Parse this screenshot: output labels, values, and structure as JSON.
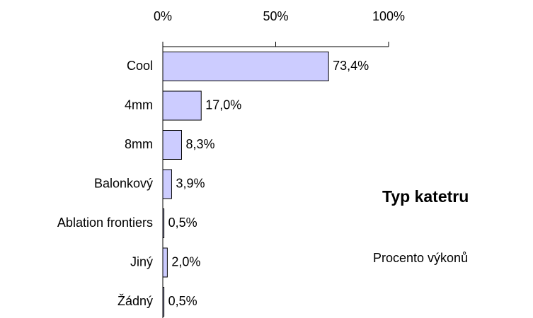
{
  "chart_data": {
    "type": "hbar",
    "title": "Typ katetru",
    "subtitle": "Procento výkonů",
    "categories": [
      "Cool",
      "4mm",
      "8mm",
      "Balonkový",
      "Ablation frontiers",
      "Jiný",
      "Žádný"
    ],
    "values": [
      73.4,
      17.0,
      8.3,
      3.9,
      0.5,
      2.0,
      0.5
    ],
    "value_labels": [
      "73,4%",
      "17,0%",
      "8,3%",
      "3,9%",
      "0,5%",
      "2,0%",
      "0,5%"
    ],
    "color": "#ccccff",
    "xlim": [
      0,
      100
    ],
    "xticks": [
      {
        "value": 0,
        "label": "0%"
      },
      {
        "value": 50,
        "label": "50%"
      },
      {
        "value": 100,
        "label": "100%"
      }
    ]
  }
}
